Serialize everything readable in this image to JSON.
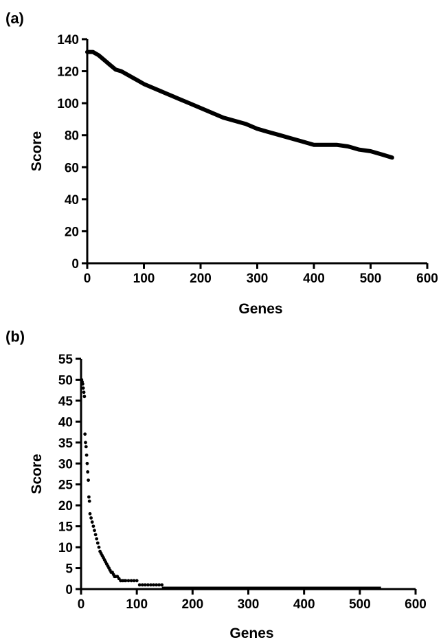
{
  "chart_data": [
    {
      "panel_label": "(a)",
      "type": "line",
      "xlabel": "Genes",
      "ylabel": "Score",
      "xlim": [
        0,
        600
      ],
      "ylim": [
        0,
        140
      ],
      "xticks": [
        "0",
        "100",
        "200",
        "300",
        "400",
        "500",
        "600"
      ],
      "yticks": [
        "0",
        "20",
        "40",
        "60",
        "80",
        "100",
        "120",
        "140"
      ],
      "grid": false,
      "legend": "none",
      "series": [
        {
          "x": [
            0,
            10,
            20,
            30,
            40,
            50,
            60,
            70,
            80,
            90,
            100,
            120,
            140,
            160,
            180,
            200,
            220,
            240,
            260,
            280,
            300,
            320,
            340,
            360,
            380,
            400,
            420,
            440,
            460,
            480,
            500,
            520,
            538
          ],
          "y": [
            132,
            132,
            130,
            127,
            124,
            121,
            120,
            118,
            116,
            114,
            112,
            109,
            106,
            103,
            100,
            97,
            94,
            91,
            89,
            87,
            84,
            82,
            80,
            78,
            76,
            74,
            74,
            74,
            73,
            71,
            70,
            68,
            66
          ]
        }
      ]
    },
    {
      "panel_label": "(b)",
      "type": "scatter",
      "xlabel": "Genes",
      "ylabel": "Score",
      "xlim": [
        0,
        600
      ],
      "ylim": [
        0,
        55
      ],
      "xticks": [
        "0",
        "100",
        "200",
        "300",
        "400",
        "500",
        "600"
      ],
      "yticks": [
        "0",
        "5",
        "10",
        "15",
        "20",
        "25",
        "30",
        "35",
        "40",
        "45",
        "50",
        "55"
      ],
      "grid": false,
      "legend": "none",
      "series": [
        {
          "x": [
            1,
            2,
            3,
            4,
            5,
            6,
            7,
            8,
            9,
            10,
            11,
            12,
            13,
            14,
            15,
            16,
            18,
            20,
            22,
            24,
            26,
            28,
            30,
            32,
            34,
            36,
            38,
            40,
            42,
            44,
            46,
            48,
            50,
            52,
            54,
            56,
            58,
            60,
            62,
            65,
            68,
            71,
            74,
            77,
            80,
            85,
            90,
            95,
            100,
            105,
            110,
            115,
            120,
            125,
            130,
            135,
            140,
            145
          ],
          "y": [
            50,
            49.5,
            49,
            48,
            47,
            46,
            37,
            35,
            34,
            32,
            30,
            28,
            26,
            22,
            21,
            18,
            17,
            16,
            15,
            14,
            13,
            12,
            11,
            10,
            9,
            8.5,
            8,
            7.5,
            7,
            6.5,
            6,
            5.5,
            5,
            4.5,
            4,
            4,
            3.5,
            3,
            3,
            3,
            2.5,
            2,
            2,
            2,
            2,
            2,
            2,
            2,
            2,
            1,
            1,
            1,
            1,
            1,
            1,
            1,
            1,
            1
          ]
        },
        {
          "x_range": [
            145,
            538
          ],
          "y": 0
        }
      ]
    }
  ]
}
